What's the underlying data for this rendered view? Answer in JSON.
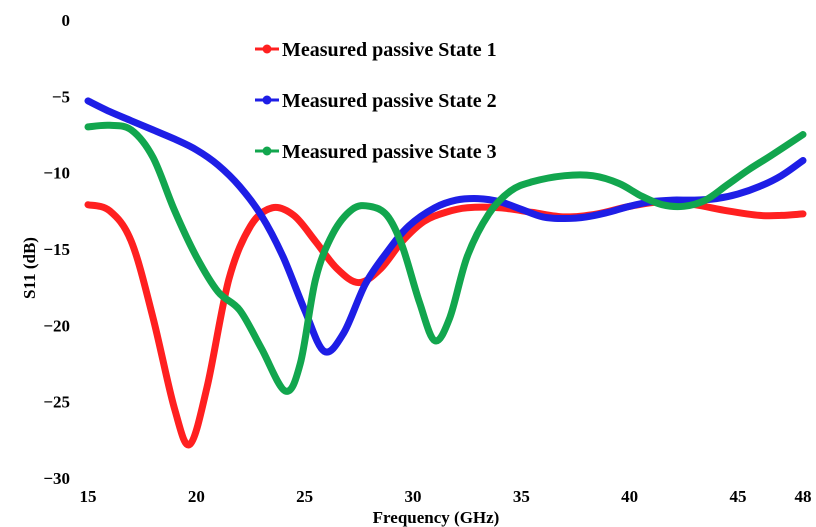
{
  "chart_data": {
    "type": "line",
    "title": "",
    "xlabel": "Frequency (GHz)",
    "ylabel": "S11 (dB)",
    "xlim": [
      15,
      48
    ],
    "ylim": [
      -30,
      0
    ],
    "xticks": [
      15,
      20,
      25,
      30,
      35,
      40,
      45,
      48
    ],
    "yticks": [
      0,
      -5,
      -10,
      -15,
      -20,
      -25,
      -30
    ],
    "xtick_labels": [
      "15",
      "20",
      "25",
      "30",
      "35",
      "40",
      "45",
      "48"
    ],
    "ytick_labels": [
      "0",
      "−5",
      "−10",
      "−15",
      "−20",
      "−25",
      "−30"
    ],
    "grid": false,
    "legend_position": "top-center",
    "series": [
      {
        "name": "Measured passive State 1",
        "color": "#ff2020",
        "points": [
          [
            15,
            -12.1
          ],
          [
            16,
            -12.5
          ],
          [
            17,
            -14.5
          ],
          [
            18,
            -19.5
          ],
          [
            19,
            -25.5
          ],
          [
            19.7,
            -27.8
          ],
          [
            20.5,
            -24
          ],
          [
            21.5,
            -17
          ],
          [
            22.5,
            -13.5
          ],
          [
            23.5,
            -12.3
          ],
          [
            24.5,
            -12.8
          ],
          [
            25.5,
            -14.5
          ],
          [
            26.5,
            -16.3
          ],
          [
            27.5,
            -17.2
          ],
          [
            28.5,
            -16.3
          ],
          [
            29.5,
            -14.5
          ],
          [
            30.5,
            -13.2
          ],
          [
            31.5,
            -12.6
          ],
          [
            32.5,
            -12.3
          ],
          [
            34,
            -12.3
          ],
          [
            35.5,
            -12.6
          ],
          [
            37,
            -12.9
          ],
          [
            38.5,
            -12.7
          ],
          [
            40,
            -12.2
          ],
          [
            41.5,
            -11.9
          ],
          [
            43,
            -12.1
          ],
          [
            44.5,
            -12.5
          ],
          [
            46,
            -12.8
          ],
          [
            47,
            -12.8
          ],
          [
            48,
            -12.7
          ]
        ]
      },
      {
        "name": "Measured passive State 2",
        "color": "#1e1ee6",
        "points": [
          [
            15,
            -5.3
          ],
          [
            16,
            -6
          ],
          [
            17,
            -6.6
          ],
          [
            18,
            -7.2
          ],
          [
            19,
            -7.8
          ],
          [
            20,
            -8.5
          ],
          [
            21,
            -9.5
          ],
          [
            22,
            -10.9
          ],
          [
            23,
            -12.8
          ],
          [
            24,
            -15.5
          ],
          [
            25,
            -19
          ],
          [
            25.9,
            -21.7
          ],
          [
            26.8,
            -20.5
          ],
          [
            27.8,
            -17.3
          ],
          [
            28.8,
            -15.2
          ],
          [
            29.8,
            -13.5
          ],
          [
            31,
            -12.3
          ],
          [
            32,
            -11.8
          ],
          [
            33,
            -11.7
          ],
          [
            34,
            -11.9
          ],
          [
            35,
            -12.4
          ],
          [
            36,
            -12.9
          ],
          [
            37,
            -13
          ],
          [
            38,
            -12.9
          ],
          [
            39,
            -12.6
          ],
          [
            40,
            -12.2
          ],
          [
            41,
            -11.9
          ],
          [
            42,
            -11.8
          ],
          [
            43,
            -11.8
          ],
          [
            44,
            -11.7
          ],
          [
            45,
            -11.4
          ],
          [
            46,
            -10.9
          ],
          [
            47,
            -10.2
          ],
          [
            48,
            -9.2
          ]
        ]
      },
      {
        "name": "Measured passive State 3",
        "color": "#12a64e",
        "points": [
          [
            15,
            -7
          ],
          [
            16,
            -6.9
          ],
          [
            17,
            -7.2
          ],
          [
            18,
            -9
          ],
          [
            19,
            -12.5
          ],
          [
            20,
            -15.5
          ],
          [
            21,
            -17.8
          ],
          [
            22,
            -19
          ],
          [
            23,
            -21.5
          ],
          [
            24.1,
            -24.3
          ],
          [
            24.8,
            -22.5
          ],
          [
            25.5,
            -17
          ],
          [
            26.3,
            -14
          ],
          [
            27.2,
            -12.4
          ],
          [
            28,
            -12.2
          ],
          [
            28.8,
            -12.8
          ],
          [
            29.5,
            -14.8
          ],
          [
            30.3,
            -18.5
          ],
          [
            31,
            -21
          ],
          [
            31.7,
            -19.5
          ],
          [
            32.5,
            -15.5
          ],
          [
            33.5,
            -12.7
          ],
          [
            34.5,
            -11.2
          ],
          [
            35.5,
            -10.6
          ],
          [
            37,
            -10.2
          ],
          [
            38.3,
            -10.2
          ],
          [
            39.5,
            -10.7
          ],
          [
            40.5,
            -11.5
          ],
          [
            41.5,
            -12.1
          ],
          [
            42.5,
            -12.2
          ],
          [
            43.5,
            -11.8
          ],
          [
            44.5,
            -10.8
          ],
          [
            45.5,
            -9.8
          ],
          [
            46.5,
            -8.9
          ],
          [
            48,
            -7.5
          ]
        ]
      }
    ]
  }
}
